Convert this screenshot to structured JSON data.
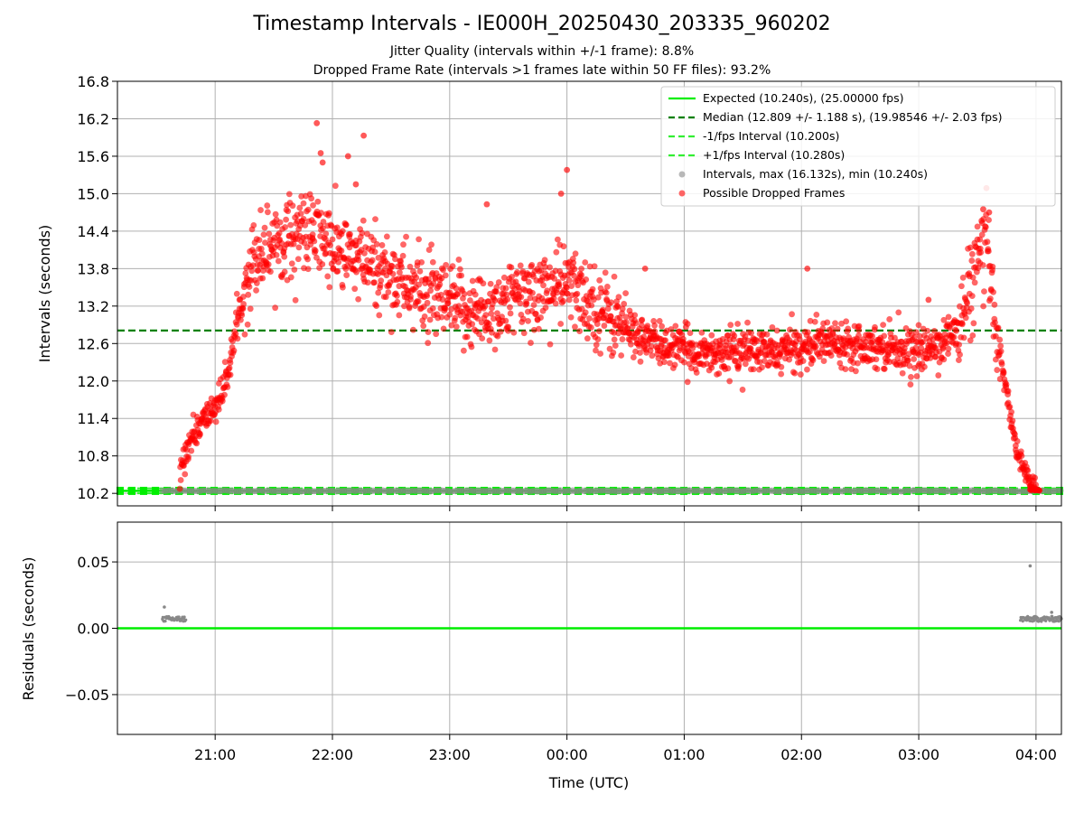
{
  "figure": {
    "title": "Timestamp Intervals - IE000H_20250430_203335_960202",
    "subtitles": [
      "Jitter Quality (intervals within +/-1 frame): 8.8%",
      "Dropped Frame Rate (intervals >1 frames late within 50 FF files): 93.2%"
    ]
  },
  "colors": {
    "expected": "#00ee00",
    "median": "#008000",
    "fps_bounds": "#33ee33",
    "dropped": "#ff0000",
    "intervals": "#888888",
    "grid": "#b0b0b0"
  },
  "chart_data": [
    {
      "id": "intervals",
      "type": "scatter",
      "ylabel": "Intervals (seconds)",
      "ylim": [
        10.0,
        16.8
      ],
      "xlim": [
        "20:10",
        "04:13"
      ],
      "yticks": [
        "10.2",
        "10.8",
        "11.4",
        "12.0",
        "12.6",
        "13.2",
        "13.8",
        "14.4",
        "15.0",
        "15.6",
        "16.2",
        "16.8"
      ],
      "grid": true,
      "legend_position": "top-right",
      "lines": {
        "expected": {
          "label": "Expected (10.240s), (25.00000 fps)",
          "y": 10.24
        },
        "median": {
          "label": "Median (12.809 +/- 1.188 s), (19.98546 +/- 2.03 fps)",
          "y": 12.809
        },
        "minus_fps": {
          "label": "-1/fps Interval (10.200s)",
          "y": 10.2
        },
        "plus_fps": {
          "label": "+1/fps Interval (10.280s)",
          "y": 10.28
        }
      },
      "series": [
        {
          "name": "Intervals, max (16.132s), min (10.240s)",
          "kind": "intervals"
        },
        {
          "name": "Possible Dropped Frames",
          "kind": "dropped",
          "trend": [
            [
              "20:42",
              10.5
            ],
            [
              "20:45",
              10.9
            ],
            [
              "20:50",
              11.2
            ],
            [
              "20:55",
              11.4
            ],
            [
              "21:00",
              11.6
            ],
            [
              "21:05",
              11.9
            ],
            [
              "21:10",
              12.7
            ],
            [
              "21:15",
              13.5
            ],
            [
              "21:20",
              14.0
            ],
            [
              "21:30",
              14.25
            ],
            [
              "21:45",
              14.4
            ],
            [
              "21:55",
              14.3
            ],
            [
              "22:00",
              14.1
            ],
            [
              "22:15",
              13.9
            ],
            [
              "22:30",
              13.7
            ],
            [
              "22:45",
              13.4
            ],
            [
              "23:00",
              13.2
            ],
            [
              "23:15",
              13.1
            ],
            [
              "23:30",
              13.25
            ],
            [
              "23:45",
              13.45
            ],
            [
              "00:00",
              13.55
            ],
            [
              "00:15",
              13.2
            ],
            [
              "00:30",
              12.85
            ],
            [
              "00:45",
              12.6
            ],
            [
              "01:00",
              12.5
            ],
            [
              "01:15",
              12.45
            ],
            [
              "01:30",
              12.5
            ],
            [
              "01:45",
              12.45
            ],
            [
              "02:00",
              12.55
            ],
            [
              "02:15",
              12.65
            ],
            [
              "02:30",
              12.6
            ],
            [
              "02:45",
              12.55
            ],
            [
              "03:00",
              12.45
            ],
            [
              "03:10",
              12.6
            ],
            [
              "03:20",
              12.8
            ],
            [
              "03:25",
              13.3
            ],
            [
              "03:30",
              13.9
            ],
            [
              "03:35",
              14.1
            ],
            [
              "03:40",
              12.8
            ],
            [
              "03:45",
              11.8
            ],
            [
              "03:50",
              10.9
            ],
            [
              "03:55",
              10.5
            ],
            [
              "04:00",
              10.26
            ]
          ],
          "outliers": [
            [
              "21:52",
              16.13
            ],
            [
              "21:54",
              15.65
            ],
            [
              "21:55",
              15.5
            ],
            [
              "22:08",
              15.6
            ],
            [
              "22:16",
              15.93
            ],
            [
              "22:12",
              15.15
            ],
            [
              "00:00",
              15.38
            ],
            [
              "23:57",
              15.0
            ],
            [
              "03:33",
              14.75
            ],
            [
              "03:36",
              14.7
            ],
            [
              "23:19",
              14.83
            ],
            [
              "02:03",
              13.8
            ],
            [
              "03:05",
              13.3
            ],
            [
              "00:40",
              13.8
            ]
          ]
        }
      ],
      "baseline_points": {
        "from": "20:33",
        "to": "04:13",
        "y": 10.24
      }
    },
    {
      "id": "residuals",
      "type": "scatter",
      "xlabel": "Time (UTC)",
      "ylabel": "Residuals (seconds)",
      "ylim": [
        -0.08,
        0.08
      ],
      "yticks": [
        "−0.05",
        "0.00",
        "0.05"
      ],
      "xticks": [
        "21:00",
        "22:00",
        "23:00",
        "00:00",
        "01:00",
        "02:00",
        "03:00",
        "04:00"
      ],
      "grid": true,
      "zero_line": 0.0,
      "clusters": [
        {
          "from": "20:33",
          "to": "20:45",
          "y": 0.007
        },
        {
          "from": "03:52",
          "to": "04:13",
          "y": 0.007
        }
      ],
      "outliers": [
        [
          "20:34",
          0.016
        ],
        [
          "03:57",
          0.047
        ],
        [
          "04:08",
          0.012
        ]
      ]
    }
  ]
}
